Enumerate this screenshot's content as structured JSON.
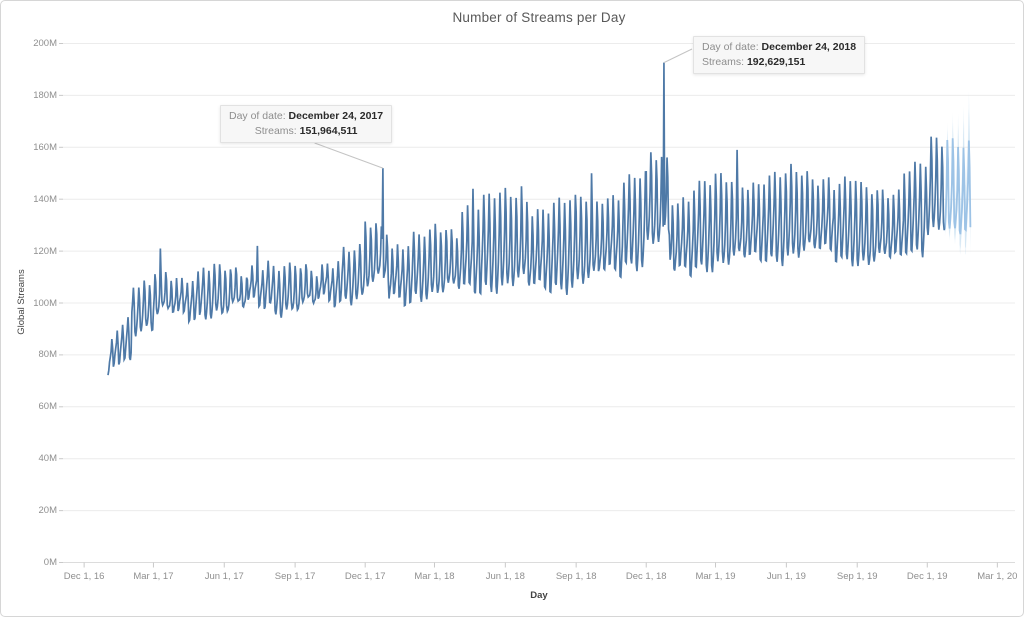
{
  "chart_data": {
    "type": "line",
    "title": "Number of Streams per Day",
    "xlabel": "Day",
    "ylabel": "Global Streams",
    "ylim": [
      0,
      200
    ],
    "grid": "horizontal",
    "line_color": "#4e79a7",
    "forecast_line_color": "#9dc3e6",
    "forecast_band_rgb": "158,199,231",
    "y_ticks": [
      {
        "v": 0,
        "label": "0M"
      },
      {
        "v": 20,
        "label": "20M"
      },
      {
        "v": 40,
        "label": "40M"
      },
      {
        "v": 60,
        "label": "60M"
      },
      {
        "v": 80,
        "label": "80M"
      },
      {
        "v": 100,
        "label": "100M"
      },
      {
        "v": 120,
        "label": "120M"
      },
      {
        "v": 140,
        "label": "140M"
      },
      {
        "v": 160,
        "label": "160M"
      },
      {
        "v": 180,
        "label": "180M"
      },
      {
        "v": 200,
        "label": "200M"
      }
    ],
    "x_ticks": [
      {
        "date": "2016-12-01",
        "label": "Dec 1, 16"
      },
      {
        "date": "2017-03-01",
        "label": "Mar 1, 17"
      },
      {
        "date": "2017-06-01",
        "label": "Jun 1, 17"
      },
      {
        "date": "2017-09-01",
        "label": "Sep 1, 17"
      },
      {
        "date": "2017-12-01",
        "label": "Dec 1, 17"
      },
      {
        "date": "2018-03-01",
        "label": "Mar 1, 18"
      },
      {
        "date": "2018-06-01",
        "label": "Jun 1, 18"
      },
      {
        "date": "2018-09-01",
        "label": "Sep 1, 18"
      },
      {
        "date": "2018-12-01",
        "label": "Dec 1, 18"
      },
      {
        "date": "2019-03-01",
        "label": "Mar 1, 19"
      },
      {
        "date": "2019-06-01",
        "label": "Jun 1, 19"
      },
      {
        "date": "2019-09-01",
        "label": "Sep 1, 19"
      },
      {
        "date": "2019-12-01",
        "label": "Dec 1, 19"
      },
      {
        "date": "2020-03-01",
        "label": "Mar 1, 20"
      }
    ],
    "series_name": "Global Streams",
    "series_start": "2017-01-01",
    "actual_end": "2019-12-23",
    "forecast_end": "2020-01-26",
    "unit": "millions_per_day",
    "weekly_shape": [
      0.06,
      0.0,
      0.14,
      0.3,
      0.55,
      1.0,
      0.72
    ],
    "monthly_pattern": [
      {
        "month": "2017-01",
        "trough": 79,
        "peak": 92
      },
      {
        "month": "2017-02",
        "trough": 91,
        "peak": 105
      },
      {
        "month": "2017-03",
        "trough": 96,
        "peak": 112
      },
      {
        "month": "2017-04",
        "trough": 95,
        "peak": 110
      },
      {
        "month": "2017-05",
        "trough": 97,
        "peak": 112
      },
      {
        "month": "2017-06",
        "trough": 98,
        "peak": 113
      },
      {
        "month": "2017-07",
        "trough": 100,
        "peak": 115
      },
      {
        "month": "2017-08",
        "trough": 98,
        "peak": 112
      },
      {
        "month": "2017-09",
        "trough": 99,
        "peak": 114
      },
      {
        "month": "2017-10",
        "trough": 101,
        "peak": 116
      },
      {
        "month": "2017-11",
        "trough": 103,
        "peak": 119
      },
      {
        "month": "2017-12",
        "trough": 108,
        "peak": 130
      },
      {
        "month": "2018-01",
        "trough": 101,
        "peak": 123
      },
      {
        "month": "2018-02",
        "trough": 104,
        "peak": 125
      },
      {
        "month": "2018-03",
        "trough": 105,
        "peak": 128
      },
      {
        "month": "2018-04",
        "trough": 105,
        "peak": 138
      },
      {
        "month": "2018-05",
        "trough": 107,
        "peak": 140
      },
      {
        "month": "2018-06",
        "trough": 108,
        "peak": 141
      },
      {
        "month": "2018-07",
        "trough": 106,
        "peak": 137
      },
      {
        "month": "2018-08",
        "trough": 107,
        "peak": 138
      },
      {
        "month": "2018-09",
        "trough": 109,
        "peak": 140
      },
      {
        "month": "2018-10",
        "trough": 112,
        "peak": 142
      },
      {
        "month": "2018-11",
        "trough": 116,
        "peak": 147
      },
      {
        "month": "2018-12",
        "trough": 124,
        "peak": 156
      },
      {
        "month": "2019-01",
        "trough": 112,
        "peak": 141
      },
      {
        "month": "2019-02",
        "trough": 115,
        "peak": 145
      },
      {
        "month": "2019-03",
        "trough": 116,
        "peak": 147
      },
      {
        "month": "2019-04",
        "trough": 117,
        "peak": 147
      },
      {
        "month": "2019-05",
        "trough": 118,
        "peak": 148
      },
      {
        "month": "2019-06",
        "trough": 119,
        "peak": 150
      },
      {
        "month": "2019-07",
        "trough": 120,
        "peak": 149
      },
      {
        "month": "2019-08",
        "trough": 118,
        "peak": 146
      },
      {
        "month": "2019-09",
        "trough": 116,
        "peak": 143
      },
      {
        "month": "2019-10",
        "trough": 117,
        "peak": 144
      },
      {
        "month": "2019-11",
        "trough": 121,
        "peak": 152
      },
      {
        "month": "2019-12",
        "trough": 129,
        "peak": 161
      }
    ],
    "forecast_pattern": {
      "trough": 126,
      "peak": 163
    },
    "events": [
      {
        "date": "2017-03-10",
        "value": 121
      },
      {
        "date": "2017-07-14",
        "value": 122
      },
      {
        "date": "2017-12-24",
        "value": 151.964511
      },
      {
        "date": "2018-04-20",
        "value": 144
      },
      {
        "date": "2018-06-22",
        "value": 145
      },
      {
        "date": "2018-09-21",
        "value": 150
      },
      {
        "date": "2018-11-23",
        "value": 148
      },
      {
        "date": "2018-12-24",
        "value": 192.629151
      },
      {
        "date": "2019-03-29",
        "value": 159
      }
    ]
  },
  "annotations": [
    {
      "label": "Day of date:",
      "date_value": "December 24, 2017",
      "streams_label": "Streams:",
      "streams_value": "151,964,511",
      "target_date": "2017-12-24",
      "target_value_m": 151.964511,
      "leader_from": "bottom"
    },
    {
      "label": "Day of date:",
      "date_value": "December 24, 2018",
      "streams_label": "Streams:",
      "streams_value": "192,629,151",
      "target_date": "2018-12-24",
      "target_value_m": 192.629151,
      "leader_from": "left"
    }
  ]
}
